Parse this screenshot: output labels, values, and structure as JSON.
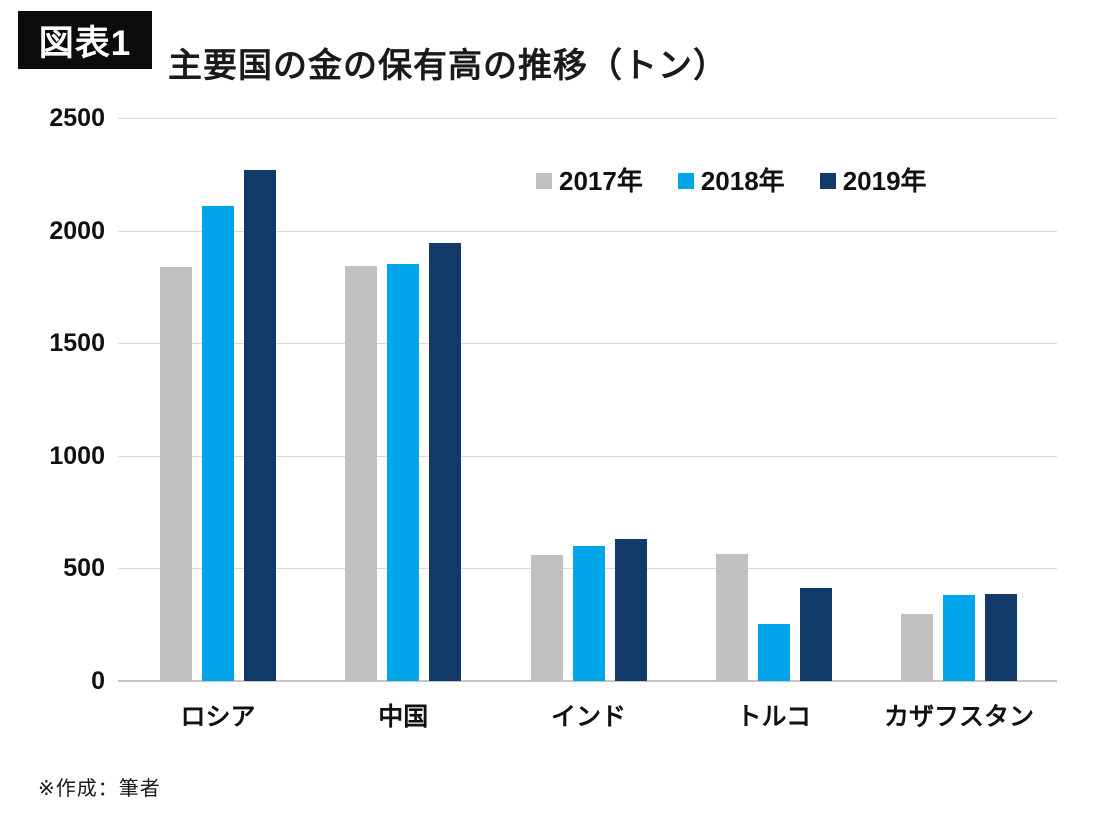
{
  "header": {
    "badge": "図表1",
    "title": "主要国の金の保有高の推移（トン）"
  },
  "footnote": "※作成：筆者",
  "colors": {
    "badge_bg": "#0b0b0b",
    "badge_text": "#ffffff",
    "grid": "#d9d9d9",
    "axis": "#c6c6c6",
    "text": "#111111"
  },
  "chart_data": {
    "type": "bar",
    "title": "主要国の金の保有高の推移（トン）",
    "categories": [
      "ロシア",
      "中国",
      "インド",
      "トルコ",
      "カザフスタン"
    ],
    "series": [
      {
        "name": "2017年",
        "color": "#c1c1c1",
        "values": [
          1839,
          1843,
          558,
          565,
          300
        ]
      },
      {
        "name": "2018年",
        "color": "#00a6e9",
        "values": [
          2113,
          1852,
          600,
          254,
          384
        ]
      },
      {
        "name": "2019年",
        "color": "#123a68",
        "values": [
          2271,
          1948,
          633,
          413,
          386
        ]
      }
    ],
    "xlabel": "",
    "ylabel": "",
    "ylim": [
      0,
      2500
    ],
    "yticks": [
      0,
      500,
      1000,
      1500,
      2000,
      2500
    ],
    "grid": true,
    "legend_position": "top-center-inside"
  }
}
